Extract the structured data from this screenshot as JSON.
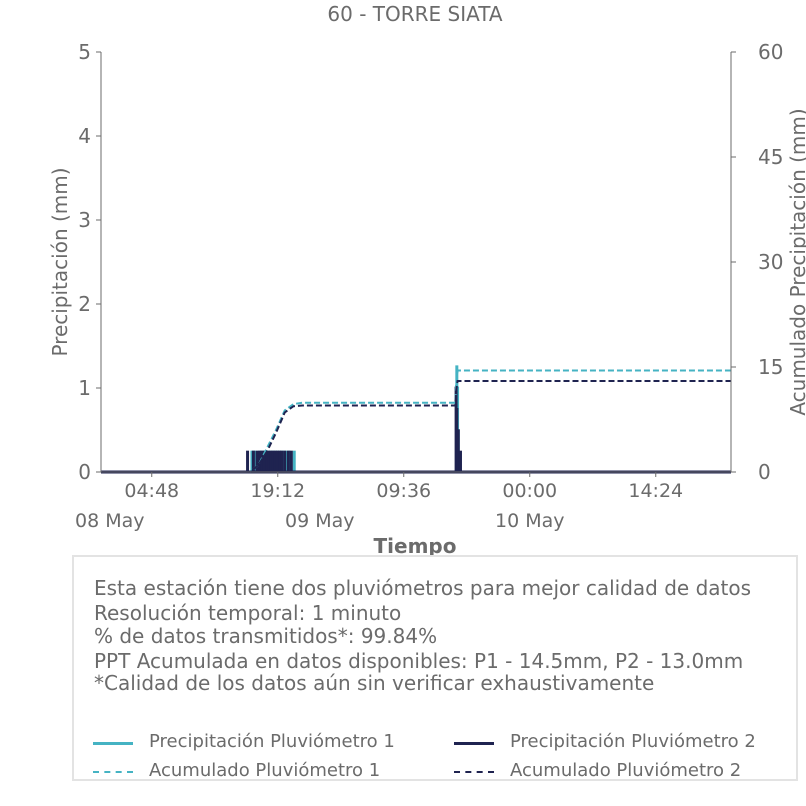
{
  "chart_data": {
    "type": "line",
    "title": "60 - TORRE SIATA",
    "xlabel": "Tiempo",
    "ylabel": "Precipitación (mm)",
    "y2label": "Acumulado Precipitación (mm)",
    "ylim": [
      0,
      5
    ],
    "y2lim": [
      0,
      60
    ],
    "yticks": [
      "0",
      "1",
      "2",
      "3",
      "4",
      "5"
    ],
    "y2ticks": [
      "0",
      "15",
      "30",
      "45",
      "60"
    ],
    "xlim": [
      "2024-05-07 23:00",
      "2024-05-10 23:00"
    ],
    "xticks": [
      "04:48",
      "19:12",
      "09:36",
      "00:00",
      "14:24"
    ],
    "xtick_times": [
      "2024-05-08 04:48",
      "2024-05-08 19:12",
      "2024-05-09 09:36",
      "2024-05-10 00:00",
      "2024-05-10 14:24"
    ],
    "date_labels": [
      "08 May",
      "09 May",
      "10 May"
    ],
    "date_times": [
      "2024-05-08 00:00",
      "2024-05-09 00:00",
      "2024-05-10 00:00"
    ],
    "grid": false,
    "colors": {
      "p1": "#45b3c3",
      "p2": "#1f2350"
    },
    "series": [
      {
        "name": "Precipitación Pluviómetro 1",
        "axis": "left",
        "style": "bars",
        "points": [
          [
            "2024-05-08 16:15",
            0.254
          ],
          [
            "2024-05-08 16:35",
            0.254
          ],
          [
            "2024-05-08 17:05",
            0.254
          ],
          [
            "2024-05-08 17:20",
            0.254
          ],
          [
            "2024-05-08 17:35",
            0.254
          ],
          [
            "2024-05-08 17:50",
            0.254
          ],
          [
            "2024-05-08 18:05",
            0.254
          ],
          [
            "2024-05-08 18:20",
            0.254
          ],
          [
            "2024-05-08 18:35",
            0.254
          ],
          [
            "2024-05-08 18:50",
            0.254
          ],
          [
            "2024-05-08 19:05",
            0.254
          ],
          [
            "2024-05-08 19:20",
            0.254
          ],
          [
            "2024-05-08 19:35",
            0.254
          ],
          [
            "2024-05-08 19:50",
            0.254
          ],
          [
            "2024-05-08 20:10",
            0.254
          ],
          [
            "2024-05-08 20:30",
            0.254
          ],
          [
            "2024-05-08 21:05",
            0.254
          ],
          [
            "2024-05-09 15:40",
            1.27
          ],
          [
            "2024-05-09 15:45",
            1.016
          ],
          [
            "2024-05-09 15:50",
            0.508
          ]
        ]
      },
      {
        "name": "Precipitación Pluviómetro 2",
        "axis": "left",
        "style": "bars",
        "points": [
          [
            "2024-05-08 15:45",
            0.254
          ],
          [
            "2024-05-08 16:25",
            0.254
          ],
          [
            "2024-05-08 16:50",
            0.254
          ],
          [
            "2024-05-08 17:10",
            0.254
          ],
          [
            "2024-05-08 17:25",
            0.254
          ],
          [
            "2024-05-08 17:40",
            0.254
          ],
          [
            "2024-05-08 17:55",
            0.254
          ],
          [
            "2024-05-08 18:10",
            0.254
          ],
          [
            "2024-05-08 18:25",
            0.254
          ],
          [
            "2024-05-08 18:40",
            0.254
          ],
          [
            "2024-05-08 18:55",
            0.254
          ],
          [
            "2024-05-08 19:10",
            0.254
          ],
          [
            "2024-05-08 19:25",
            0.254
          ],
          [
            "2024-05-08 19:40",
            0.254
          ],
          [
            "2024-05-08 20:00",
            0.254
          ],
          [
            "2024-05-08 20:25",
            0.254
          ],
          [
            "2024-05-08 20:45",
            0.254
          ],
          [
            "2024-05-09 15:35",
            1.016
          ],
          [
            "2024-05-09 15:40",
            0.762
          ],
          [
            "2024-05-09 15:50",
            0.508
          ],
          [
            "2024-05-09 16:05",
            0.254
          ]
        ]
      },
      {
        "name": "Acumulado Pluviómetro 1",
        "axis": "right",
        "style": "dashed",
        "points": [
          [
            "2024-05-07 23:00",
            0
          ],
          [
            "2024-05-08 16:00",
            0
          ],
          [
            "2024-05-08 17:00",
            1.0
          ],
          [
            "2024-05-08 18:00",
            3.5
          ],
          [
            "2024-05-08 19:00",
            6.0
          ],
          [
            "2024-05-08 20:00",
            8.8
          ],
          [
            "2024-05-08 21:00",
            9.7
          ],
          [
            "2024-05-08 22:00",
            9.9
          ],
          [
            "2024-05-09 15:30",
            9.9
          ],
          [
            "2024-05-09 15:35",
            12.4
          ],
          [
            "2024-05-09 15:45",
            14.5
          ],
          [
            "2024-05-10 23:00",
            14.5
          ]
        ]
      },
      {
        "name": "Acumulado Pluviómetro 2",
        "axis": "right",
        "style": "dashed",
        "points": [
          [
            "2024-05-07 23:00",
            0
          ],
          [
            "2024-05-08 16:00",
            0
          ],
          [
            "2024-05-08 17:00",
            1.0
          ],
          [
            "2024-05-08 18:00",
            3.0
          ],
          [
            "2024-05-08 19:00",
            5.6
          ],
          [
            "2024-05-08 20:00",
            8.5
          ],
          [
            "2024-05-08 21:00",
            9.4
          ],
          [
            "2024-05-08 22:00",
            9.5
          ],
          [
            "2024-05-09 15:30",
            9.5
          ],
          [
            "2024-05-09 15:35",
            11.5
          ],
          [
            "2024-05-09 15:45",
            13.0
          ],
          [
            "2024-05-10 23:00",
            13.0
          ]
        ]
      }
    ]
  },
  "info": {
    "line1": "Esta estación tiene dos pluviómetros para mejor calidad de datos",
    "line2": "Resolución temporal: 1 minuto",
    "line3": "% de datos transmitidos*: 99.84%",
    "line4": "PPT Acumulada en datos disponibles: P1 - 14.5mm, P2 - 13.0mm",
    "line5": "*Calidad de los datos aún sin verificar exhaustivamente"
  },
  "legend": {
    "p1_precip": "Precipitación Pluviómetro 1",
    "p2_precip": "Precipitación Pluviómetro 2",
    "p1_acum": "Acumulado Pluviómetro 1",
    "p2_acum": "Acumulado Pluviómetro 2"
  }
}
